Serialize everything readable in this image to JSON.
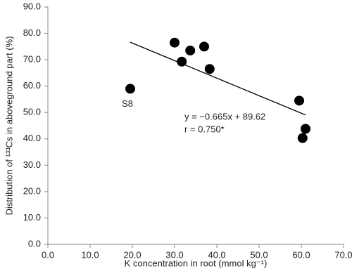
{
  "chart_data": {
    "type": "scatter",
    "x_label": "K concentration in root (mmol kg⁻¹)",
    "y_label": "Distribution of ¹³³Cs in aboveground part (%)",
    "x": [
      19.5,
      30,
      31.7,
      33.7,
      37,
      38.3,
      59.5,
      60.3,
      61
    ],
    "values": [
      59.0,
      76.5,
      69.3,
      73.5,
      75.0,
      66.5,
      54.5,
      40.3,
      43.8
    ],
    "color": "#000000",
    "point_labels": [
      "S8"
    ],
    "fit": {
      "slope": -0.665,
      "intercept": 89.62,
      "equation": "y = −0.665x + 89.62",
      "r": "r = 0.750*"
    },
    "xlim": [
      0,
      70
    ],
    "xticks": [
      {
        "value": 0,
        "label": "0.0"
      },
      {
        "value": 10,
        "label": "10.0"
      },
      {
        "value": 20,
        "label": "20.0"
      },
      {
        "value": 30,
        "label": "30.0"
      },
      {
        "value": 40,
        "label": "40.0"
      },
      {
        "value": 50,
        "label": "50.0"
      },
      {
        "value": 60,
        "label": "60.0"
      },
      {
        "value": 70,
        "label": "70.0"
      }
    ],
    "ylim": [
      0,
      90
    ],
    "yticks": [
      {
        "value": 0,
        "label": "0.0"
      },
      {
        "value": 10,
        "label": "10.0"
      },
      {
        "value": 20,
        "label": "20.0"
      },
      {
        "value": 30,
        "label": "30.0"
      },
      {
        "value": 40,
        "label": "40.0"
      },
      {
        "value": 50,
        "label": "50.0"
      },
      {
        "value": 60,
        "label": "60.0"
      },
      {
        "value": 70,
        "label": "70.0"
      },
      {
        "value": 80,
        "label": "80.0"
      },
      {
        "value": 90,
        "label": "90.0"
      }
    ],
    "grid": false
  }
}
